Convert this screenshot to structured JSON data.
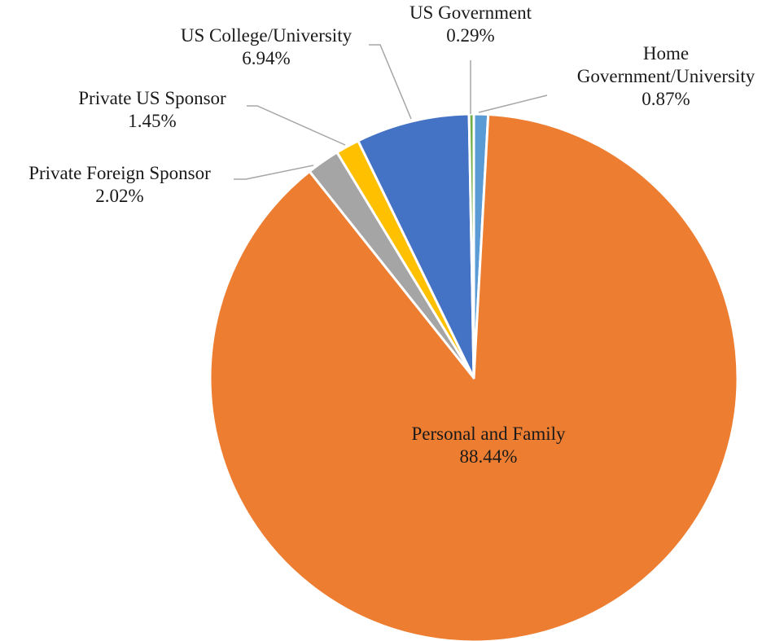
{
  "chart_data": {
    "type": "pie",
    "start_angle_deg": 0,
    "direction": "clockwise",
    "slices": [
      {
        "name": "Home Government/University",
        "label_lines": [
          "Home",
          "Government/University"
        ],
        "value": 0.87,
        "value_label": "0.87%",
        "color": "#5b9bd5"
      },
      {
        "name": "Personal and Family",
        "label_lines": [
          "Personal and Family"
        ],
        "value": 88.44,
        "value_label": "88.44%",
        "color": "#ed7d31"
      },
      {
        "name": "Private Foreign Sponsor",
        "label_lines": [
          "Private Foreign Sponsor"
        ],
        "value": 2.02,
        "value_label": "2.02%",
        "color": "#a5a5a5"
      },
      {
        "name": "Private US Sponsor",
        "label_lines": [
          "Private US Sponsor"
        ],
        "value": 1.45,
        "value_label": "1.45%",
        "color": "#ffc000"
      },
      {
        "name": "US College/University",
        "label_lines": [
          "US College/University"
        ],
        "value": 6.94,
        "value_label": "6.94%",
        "color": "#4472c4"
      },
      {
        "name": "US Government",
        "label_lines": [
          "US Government"
        ],
        "value": 0.29,
        "value_label": "0.29%",
        "color": "#70ad47"
      }
    ]
  }
}
